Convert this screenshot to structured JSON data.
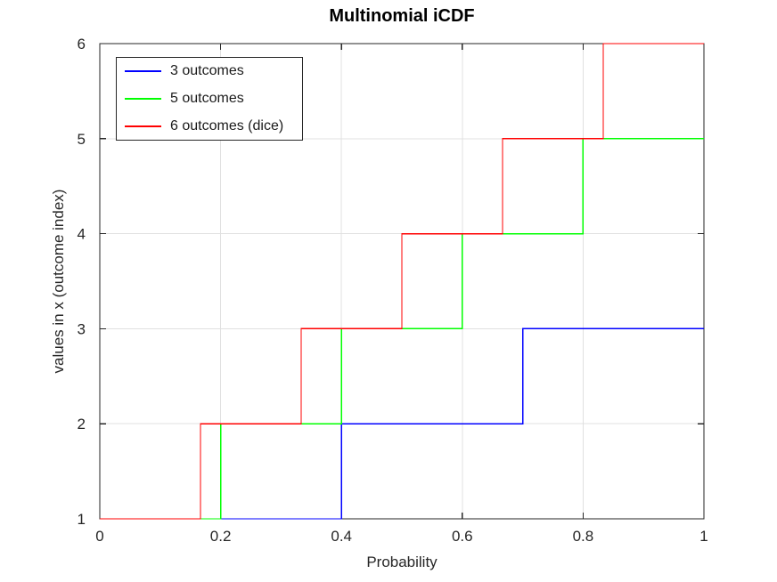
{
  "chart_data": {
    "type": "line",
    "style": "stairs",
    "title": "Multinomial iCDF",
    "xlabel": "Probability",
    "ylabel": "values in x (outcome index)",
    "xlim": [
      0,
      1
    ],
    "ylim": [
      1,
      6
    ],
    "xticks": [
      0,
      0.2,
      0.4,
      0.6,
      0.8,
      1
    ],
    "xtick_labels": [
      "0",
      "0.2",
      "0.4",
      "0.6",
      "0.8",
      "1"
    ],
    "yticks": [
      1,
      2,
      3,
      4,
      5,
      6
    ],
    "ytick_labels": [
      "1",
      "2",
      "3",
      "4",
      "5",
      "6"
    ],
    "grid": true,
    "legend_position": "top-left",
    "series": [
      {
        "name": "3 outcomes",
        "color": "#0000ff",
        "x": [
          0,
          0.4,
          0.7,
          1
        ],
        "y": [
          1,
          2,
          3,
          3
        ]
      },
      {
        "name": "5 outcomes",
        "color": "#00ff00",
        "x": [
          0,
          0.2,
          0.4,
          0.6,
          0.8,
          1
        ],
        "y": [
          1,
          2,
          3,
          4,
          5,
          5
        ]
      },
      {
        "name": "6 outcomes (dice)",
        "color": "#ff0000",
        "x": [
          0,
          0.1667,
          0.3333,
          0.5,
          0.6667,
          0.8333,
          1
        ],
        "y": [
          1,
          2,
          3,
          4,
          5,
          6,
          6
        ]
      }
    ]
  },
  "colors": {
    "axis": "#262626",
    "grid": "#e0e0e0",
    "background": "#ffffff",
    "title_text": "#000000",
    "label_text": "#262626"
  }
}
